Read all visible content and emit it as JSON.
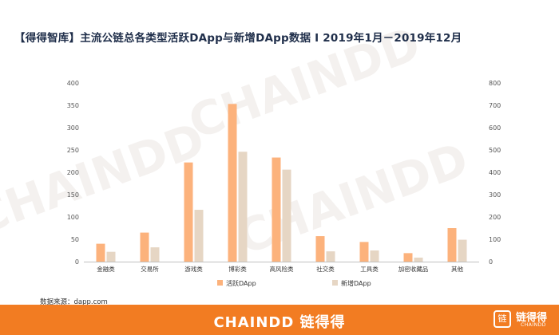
{
  "title": "【得得智库】主流公链总各类型活跃DApp与新增DApp数据 I 2019年1月－2019年12月",
  "watermark": "CHAINDD",
  "source": "数据来源：dapp.com",
  "footer": {
    "brand": "CHAINDD 链得得",
    "logo_char": "链",
    "logo_text": "链得得",
    "logo_sub": "CHAINDD"
  },
  "colors": {
    "active": "#fcb27c",
    "new": "#e6d6c4",
    "footer": "#f27c22"
  },
  "chart_data": {
    "type": "bar",
    "categories": [
      "金融类",
      "交易所",
      "游戏类",
      "博彩类",
      "高风险类",
      "社交类",
      "工具类",
      "加密收藏品",
      "其他"
    ],
    "series": [
      {
        "name": "活跃DApp",
        "axis": "left",
        "values": [
          40,
          65,
          222,
          353,
          233,
          57,
          44,
          19,
          75
        ]
      },
      {
        "name": "新增DApp",
        "axis": "right",
        "values": [
          44,
          64,
          232,
          492,
          412,
          46,
          50,
          18,
          98
        ]
      }
    ],
    "y_left": {
      "min": 0,
      "max": 400,
      "ticks": [
        0,
        50,
        100,
        150,
        200,
        250,
        300,
        350,
        400
      ]
    },
    "y_right": {
      "min": 0,
      "max": 800,
      "ticks": [
        0,
        100,
        200,
        300,
        400,
        500,
        600,
        700,
        800
      ]
    },
    "grid": false,
    "legend": "bottom"
  }
}
